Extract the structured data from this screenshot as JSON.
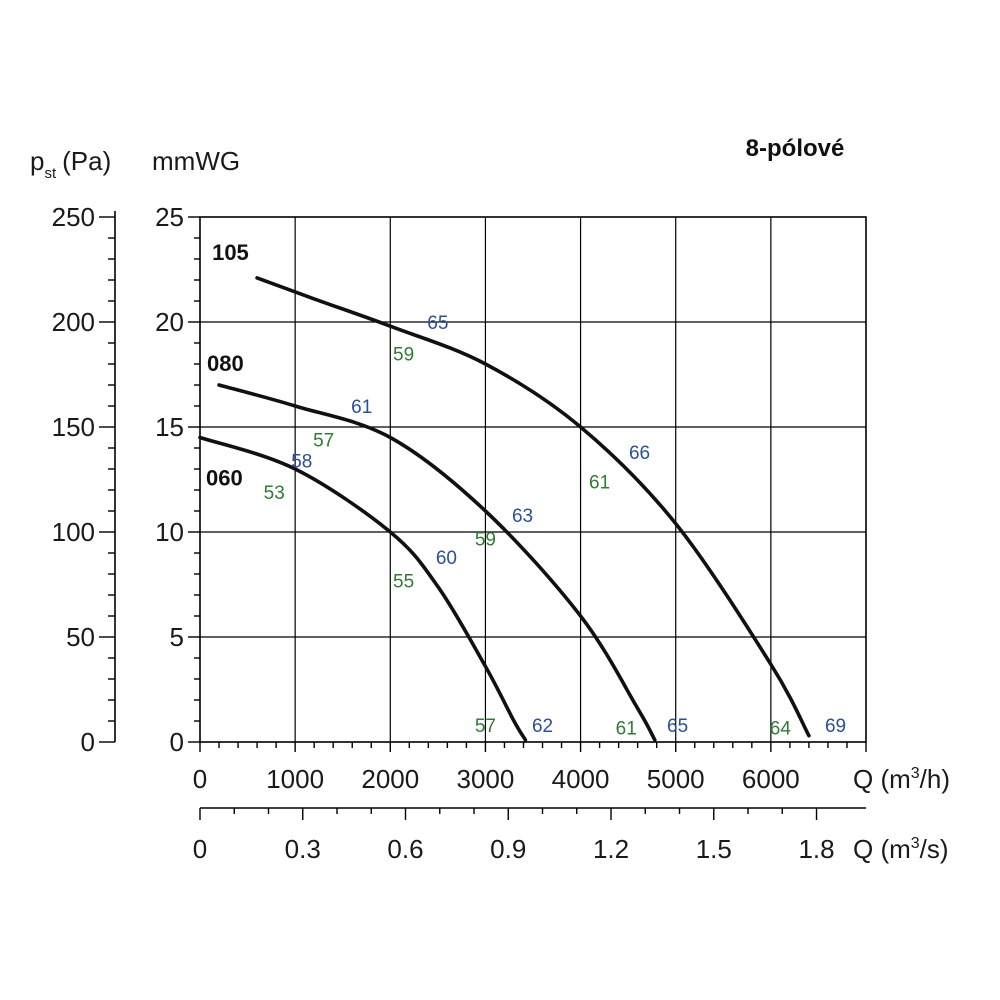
{
  "chart_data": {
    "type": "line",
    "title": "8-pólové",
    "y_left_label": {
      "main": "p",
      "sub": "st",
      "unit": "(Pa)"
    },
    "y_right_label": "mmWG",
    "x_top_label": {
      "pre": "Q (m",
      "sup": "3",
      "post": "/h)"
    },
    "x_bottom_label": {
      "pre": "Q (m",
      "sup": "3",
      "post": "/s)"
    },
    "xlim": [
      0,
      7000
    ],
    "ylim": [
      0,
      250
    ],
    "y_ticks_pa": [
      "0",
      "50",
      "100",
      "150",
      "200",
      "250"
    ],
    "y_ticks_mmwg": [
      "0",
      "5",
      "10",
      "15",
      "20",
      "25"
    ],
    "x_ticks_m3h": [
      "0",
      "1000",
      "2000",
      "3000",
      "4000",
      "5000",
      "6000"
    ],
    "x_ticks_m3s": [
      "0",
      "0.3",
      "0.6",
      "0.9",
      "1.2",
      "1.5",
      "1.8"
    ],
    "grid": true,
    "colors": {
      "green": "#2e7d32",
      "blue": "#2a4f9e",
      "curve": "#111111"
    },
    "series": [
      {
        "name": "105",
        "x": [
          600,
          1200,
          2000,
          3000,
          4000,
          5000,
          6000,
          6400
        ],
        "y": [
          221,
          211,
          198,
          180,
          150,
          104,
          37,
          3
        ]
      },
      {
        "name": "080",
        "x": [
          200,
          1000,
          2000,
          3000,
          4000,
          4600,
          4780
        ],
        "y": [
          170,
          160,
          145,
          110,
          60,
          16,
          1
        ]
      },
      {
        "name": "060",
        "x": [
          0,
          1000,
          2000,
          2500,
          3000,
          3300,
          3420
        ],
        "y": [
          145,
          130,
          100,
          74,
          36,
          10,
          1
        ]
      }
    ],
    "annotations": [
      {
        "text": "65",
        "color": "blue",
        "x": 2500,
        "y": 200
      },
      {
        "text": "59",
        "color": "green",
        "x": 2140,
        "y": 185
      },
      {
        "text": "66",
        "color": "blue",
        "x": 4620,
        "y": 138
      },
      {
        "text": "61",
        "color": "green",
        "x": 4200,
        "y": 124
      },
      {
        "text": "61",
        "color": "blue",
        "x": 1700,
        "y": 160
      },
      {
        "text": "57",
        "color": "green",
        "x": 1300,
        "y": 144
      },
      {
        "text": "63",
        "color": "blue",
        "x": 3390,
        "y": 108
      },
      {
        "text": "59",
        "color": "green",
        "x": 3000,
        "y": 97
      },
      {
        "text": "58",
        "color": "blue",
        "x": 1070,
        "y": 134
      },
      {
        "text": "53",
        "color": "green",
        "x": 780,
        "y": 119
      },
      {
        "text": "60",
        "color": "blue",
        "x": 2590,
        "y": 88
      },
      {
        "text": "55",
        "color": "green",
        "x": 2140,
        "y": 77
      },
      {
        "text": "57",
        "color": "green",
        "x": 3000,
        "y": 8
      },
      {
        "text": "62",
        "color": "blue",
        "x": 3600,
        "y": 8
      },
      {
        "text": "61",
        "color": "green",
        "x": 4480,
        "y": 7
      },
      {
        "text": "65",
        "color": "blue",
        "x": 5020,
        "y": 8
      },
      {
        "text": "64",
        "color": "green",
        "x": 6100,
        "y": 7
      },
      {
        "text": "69",
        "color": "blue",
        "x": 6680,
        "y": 8
      }
    ]
  }
}
